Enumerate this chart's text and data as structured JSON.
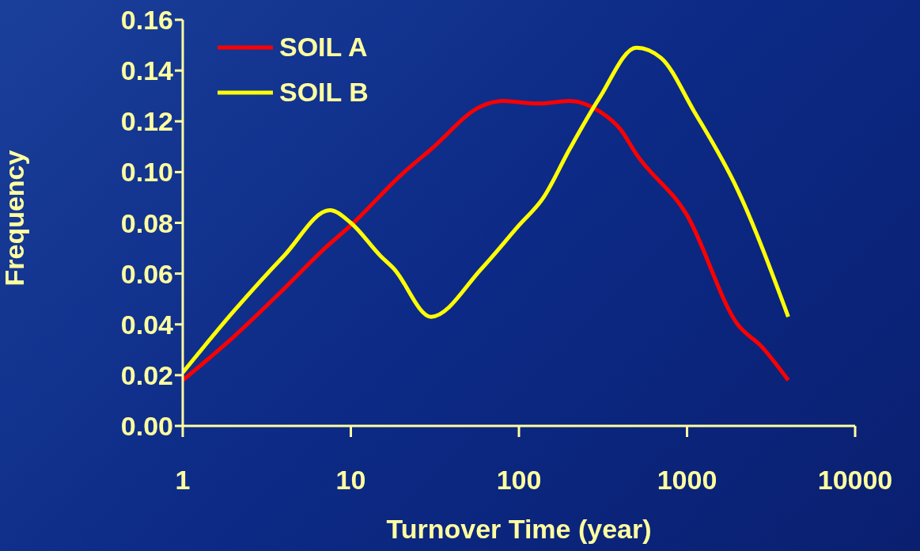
{
  "chart_data": {
    "type": "line",
    "xlabel": "Turnover Time (year)",
    "ylabel": "Frequency",
    "log": "x",
    "xlim": [
      1,
      10000
    ],
    "xticks": [
      1,
      10,
      100,
      1000,
      10000
    ],
    "ylim": [
      0,
      0.16
    ],
    "yticks": [
      {
        "value": 0,
        "label": "0.00"
      },
      {
        "value": 0.02,
        "label": "0.02"
      },
      {
        "value": 0.04,
        "label": "0.04"
      },
      {
        "value": 0.06,
        "label": "0.06"
      },
      {
        "value": 0.08,
        "label": "0.08"
      },
      {
        "value": 0.1,
        "label": "0.10"
      },
      {
        "value": 0.12,
        "label": "0.12"
      },
      {
        "value": 0.14,
        "label": "0.14"
      },
      {
        "value": 0.16,
        "label": "0.16"
      }
    ],
    "legend": "top left",
    "marker": "none",
    "line_style": "solid",
    "series": [
      {
        "name": "SOIL A",
        "color": "#ff0000",
        "x": [
          1,
          2,
          4,
          7,
          10,
          20,
          30,
          60,
          80,
          130,
          200,
          300,
          400,
          500,
          1000,
          2000,
          2800,
          4000
        ],
        "values": [
          0.018,
          0.035,
          0.054,
          0.07,
          0.079,
          0.099,
          0.109,
          0.126,
          0.128,
          0.127,
          0.128,
          0.124,
          0.117,
          0.107,
          0.083,
          0.04,
          0.031,
          0.018
        ]
      },
      {
        "name": "SOIL B",
        "color": "#ffff00",
        "x": [
          1,
          2,
          4,
          7.5,
          10,
          15,
          18,
          30,
          60,
          100,
          140,
          200,
          300,
          500,
          700,
          1100,
          2000,
          4000
        ],
        "values": [
          0.021,
          0.045,
          0.067,
          0.085,
          0.08,
          0.067,
          0.062,
          0.043,
          0.062,
          0.079,
          0.09,
          0.109,
          0.129,
          0.149,
          0.145,
          0.124,
          0.093,
          0.043
        ]
      }
    ]
  }
}
